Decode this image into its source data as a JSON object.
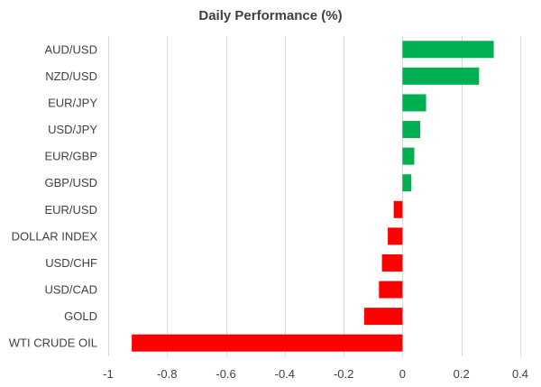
{
  "chart_data": {
    "type": "bar",
    "orientation": "horizontal",
    "title": "Daily Performance (%)",
    "xlabel": "",
    "ylabel": "",
    "categories": [
      "AUD/USD",
      "NZD/USD",
      "EUR/JPY",
      "USD/JPY",
      "EUR/GBP",
      "GBP/USD",
      "EUR/USD",
      "DOLLAR INDEX",
      "USD/CHF",
      "USD/CAD",
      "GOLD",
      "WTI CRUDE OIL"
    ],
    "values": [
      0.31,
      0.26,
      0.08,
      0.06,
      0.04,
      0.03,
      -0.03,
      -0.05,
      -0.07,
      -0.08,
      -0.13,
      -0.92
    ],
    "xlim": [
      -1,
      0.4
    ],
    "xticks": [
      "-1",
      "-0.8",
      "-0.6",
      "-0.4",
      "-0.2",
      "0",
      "0.2",
      "0.4"
    ],
    "xtick_values": [
      -1,
      -0.8,
      -0.6,
      -0.4,
      -0.2,
      0,
      0.2,
      0.4
    ],
    "grid": "vertical",
    "legend": "none",
    "colors": {
      "positive": "#00B050",
      "negative": "#FF0000",
      "grid": "#D9D9D9",
      "text": "#404040"
    }
  }
}
